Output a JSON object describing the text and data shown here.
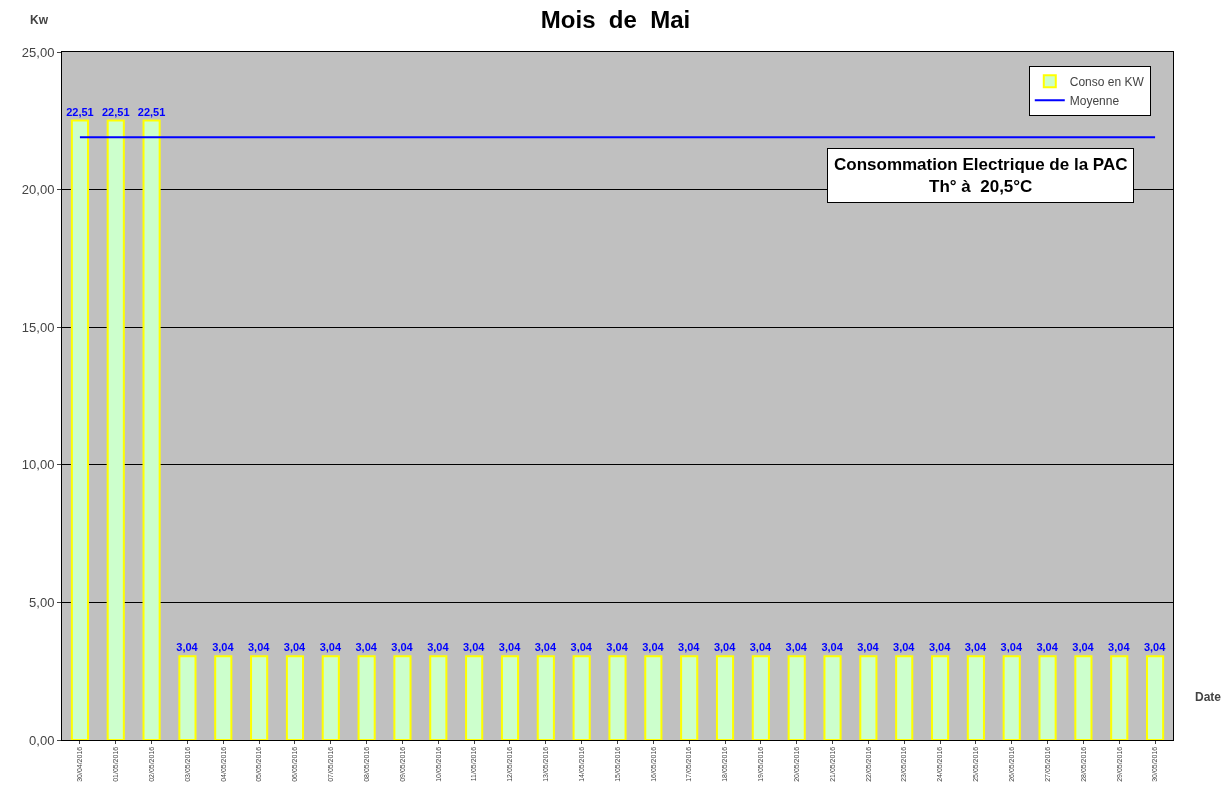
{
  "chart_data": {
    "type": "bar",
    "title": "Mois  de  Mai",
    "xlabel": "Date",
    "ylabel": "Kw",
    "annotations": [
      "Consommation Electrique de la PAC\nTh° à  20,5°C"
    ],
    "categories": [
      "30/04/2016",
      "01/05/2016",
      "02/05/2016",
      "03/05/2016",
      "04/05/2016",
      "05/05/2016",
      "06/05/2016",
      "07/05/2016",
      "08/05/2016",
      "09/05/2016",
      "10/05/2016",
      "11/05/2016",
      "12/05/2016",
      "13/05/2016",
      "14/05/2016",
      "15/05/2016",
      "16/05/2016",
      "17/05/2016",
      "18/05/2016",
      "19/05/2016",
      "20/05/2016",
      "21/05/2016",
      "22/05/2016",
      "23/05/2016",
      "24/05/2016",
      "25/05/2016",
      "26/05/2016",
      "27/05/2016",
      "28/05/2016",
      "29/05/2016",
      "30/05/2016"
    ],
    "series": [
      {
        "name": "Conso en KW",
        "color": "#ccffcc",
        "values": [
          22.51,
          22.51,
          22.51,
          3.04,
          3.04,
          3.04,
          3.04,
          3.04,
          3.04,
          3.04,
          3.04,
          3.04,
          3.04,
          3.04,
          3.04,
          3.04,
          3.04,
          3.04,
          3.04,
          3.04,
          3.04,
          3.04,
          3.04,
          3.04,
          3.04,
          3.04,
          3.04,
          3.04,
          3.04,
          3.04,
          3.04
        ],
        "value_labels": [
          "22,51",
          "22,51",
          "22,51",
          "3,04",
          "3,04",
          "3,04",
          "3,04",
          "3,04",
          "3,04",
          "3,04",
          "3,04",
          "3,04",
          "3,04",
          "3,04",
          "3,04",
          "3,04",
          "3,04",
          "3,04",
          "3,04",
          "3,04",
          "3,04",
          "3,04",
          "3,04",
          "3,04",
          "3,04",
          "3,04",
          "3,04",
          "3,04",
          "3,04",
          "3,04",
          "3,04"
        ]
      },
      {
        "name": "Moyenne",
        "type": "line",
        "color": "#0000ff",
        "marker": "none",
        "values": [
          21.9,
          21.9,
          21.9,
          21.9,
          21.9,
          21.9,
          21.9,
          21.9,
          21.9,
          21.9,
          21.9,
          21.9,
          21.9,
          21.9,
          21.9,
          21.9,
          21.9,
          21.9,
          21.9,
          21.9,
          21.9,
          21.9,
          21.9,
          21.9,
          21.9,
          21.9,
          21.9,
          21.9,
          21.9,
          21.9,
          21.9
        ]
      }
    ],
    "ylim": [
      0,
      25
    ],
    "yticks": [
      {
        "value": 0,
        "label": "0,00"
      },
      {
        "value": 5,
        "label": "5,00"
      },
      {
        "value": 10,
        "label": "10,00"
      },
      {
        "value": 15,
        "label": "15,00"
      },
      {
        "value": 20,
        "label": "20,00"
      },
      {
        "value": 25,
        "label": "25,00"
      }
    ],
    "grid": "y",
    "legend": "top right"
  }
}
